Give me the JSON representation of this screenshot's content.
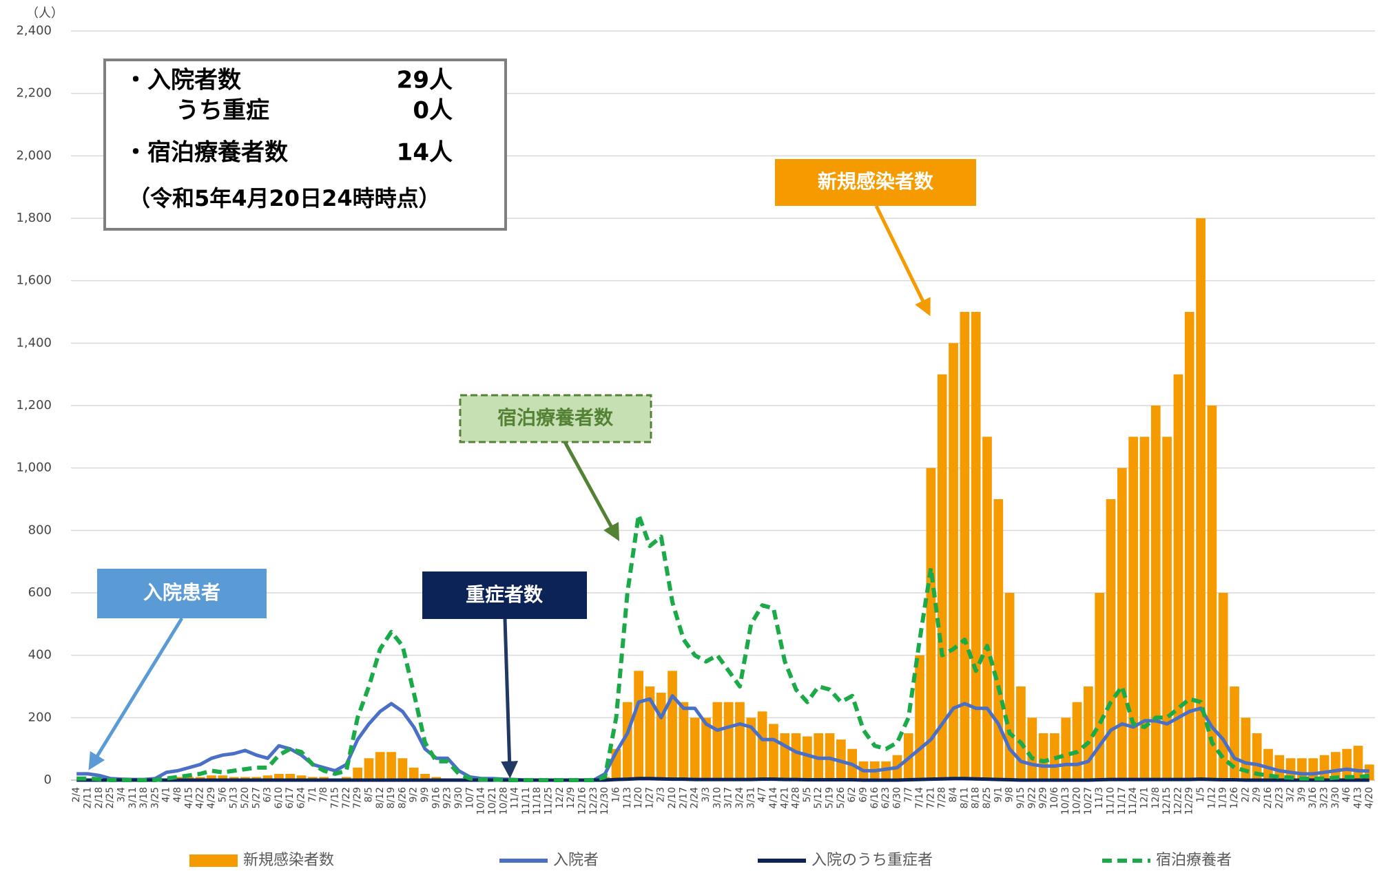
{
  "chart_data": {
    "type": "bar",
    "y_label": "（人）",
    "ylim": [
      0,
      2400
    ],
    "yticks": [
      0,
      200,
      400,
      600,
      800,
      {
        "value": 1000,
        "label": "1,000"
      },
      {
        "value": 1200,
        "label": "1,200"
      },
      {
        "value": 1400,
        "label": "1,400"
      },
      {
        "value": 1600,
        "label": "1,600"
      },
      {
        "value": 1800,
        "label": "1,800"
      },
      {
        "value": 2000,
        "label": "2,000"
      },
      {
        "value": 2200,
        "label": "2,200"
      },
      {
        "value": 2400,
        "label": "2,400"
      }
    ],
    "grid": true,
    "legend": "bottom",
    "categories": [
      "2/4",
      "2/11",
      "2/18",
      "2/25",
      "3/4",
      "3/11",
      "3/18",
      "3/25",
      "4/1",
      "4/8",
      "4/15",
      "4/22",
      "4/29",
      "5/6",
      "5/13",
      "5/20",
      "5/27",
      "6/3",
      "6/10",
      "6/17",
      "6/24",
      "7/1",
      "7/8",
      "7/15",
      "7/22",
      "7/29",
      "8/5",
      "8/12",
      "8/19",
      "8/26",
      "9/2",
      "9/9",
      "9/16",
      "9/23",
      "9/30",
      "10/7",
      "10/14",
      "10/21",
      "10/28",
      "11/4",
      "11/11",
      "11/18",
      "11/25",
      "12/2",
      "12/9",
      "12/16",
      "12/23",
      "12/30",
      "1/6",
      "1/13",
      "1/20",
      "1/27",
      "2/3",
      "2/10",
      "2/17",
      "2/24",
      "3/3",
      "3/10",
      "3/17",
      "3/24",
      "3/31",
      "4/7",
      "4/14",
      "4/21",
      "4/28",
      "5/5",
      "5/12",
      "5/19",
      "5/26",
      "6/2",
      "6/9",
      "6/16",
      "6/23",
      "6/30",
      "7/7",
      "7/14",
      "7/21",
      "7/28",
      "8/4",
      "8/11",
      "8/18",
      "8/25",
      "9/1",
      "9/8",
      "9/15",
      "9/22",
      "9/29",
      "10/6",
      "10/13",
      "10/20",
      "10/27",
      "11/3",
      "11/10",
      "11/17",
      "11/24",
      "12/1",
      "12/8",
      "12/15",
      "12/22",
      "12/29",
      "1/5",
      "1/12",
      "1/19",
      "1/26",
      "2/2",
      "2/9",
      "2/16",
      "2/23",
      "3/2",
      "3/9",
      "3/16",
      "3/23",
      "3/30",
      "4/6",
      "4/13",
      "4/20"
    ],
    "series": [
      {
        "name": "新規感染者数",
        "type": "bar",
        "color": "#f59b00",
        "values": [
          0,
          0,
          0,
          0,
          0,
          0,
          0,
          0,
          5,
          10,
          10,
          10,
          15,
          15,
          10,
          10,
          10,
          15,
          20,
          20,
          15,
          10,
          10,
          5,
          10,
          40,
          70,
          90,
          90,
          70,
          40,
          20,
          10,
          5,
          3,
          2,
          2,
          1,
          0,
          0,
          0,
          0,
          0,
          0,
          0,
          0,
          0,
          10,
          100,
          250,
          350,
          300,
          280,
          350,
          250,
          200,
          200,
          250,
          250,
          250,
          200,
          220,
          180,
          150,
          150,
          140,
          150,
          150,
          130,
          100,
          60,
          60,
          60,
          80,
          150,
          400,
          1000,
          1300,
          1400,
          1500,
          1500,
          1100,
          900,
          600,
          300,
          200,
          150,
          150,
          200,
          250,
          300,
          600,
          900,
          1000,
          1100,
          1100,
          1200,
          1100,
          1300,
          1500,
          1800,
          1200,
          600,
          300,
          200,
          150,
          100,
          80,
          70,
          70,
          70,
          80,
          90,
          100,
          110,
          50
        ]
      },
      {
        "name": "入院者",
        "type": "line",
        "color": "#4a6fc6",
        "dash": false,
        "values": [
          20,
          20,
          15,
          5,
          3,
          2,
          2,
          5,
          25,
          30,
          40,
          50,
          70,
          80,
          85,
          95,
          80,
          70,
          110,
          100,
          80,
          50,
          40,
          30,
          50,
          130,
          180,
          220,
          245,
          220,
          170,
          100,
          70,
          70,
          30,
          10,
          5,
          5,
          3,
          2,
          0,
          0,
          0,
          0,
          0,
          0,
          0,
          20,
          90,
          150,
          250,
          260,
          200,
          270,
          230,
          230,
          180,
          160,
          170,
          180,
          170,
          130,
          130,
          110,
          90,
          80,
          70,
          70,
          60,
          50,
          30,
          30,
          35,
          40,
          70,
          100,
          130,
          180,
          230,
          245,
          230,
          230,
          180,
          100,
          60,
          50,
          45,
          45,
          50,
          50,
          60,
          110,
          160,
          180,
          170,
          190,
          190,
          180,
          200,
          220,
          230,
          170,
          130,
          70,
          55,
          50,
          40,
          30,
          25,
          20,
          20,
          25,
          30,
          35,
          30,
          29
        ]
      },
      {
        "name": "入院のうち重症者",
        "type": "line",
        "color": "#0c2357",
        "dash": false,
        "values": [
          0,
          0,
          0,
          0,
          0,
          0,
          0,
          0,
          0,
          0,
          0,
          0,
          0,
          0,
          0,
          0,
          0,
          0,
          0,
          0,
          0,
          0,
          0,
          0,
          0,
          0,
          0,
          0,
          0,
          0,
          0,
          0,
          0,
          0,
          0,
          0,
          0,
          0,
          0,
          0,
          0,
          0,
          0,
          0,
          0,
          0,
          0,
          0,
          2,
          3,
          5,
          5,
          4,
          3,
          3,
          2,
          2,
          2,
          2,
          2,
          2,
          3,
          3,
          2,
          2,
          1,
          1,
          1,
          1,
          1,
          0,
          0,
          0,
          0,
          1,
          2,
          3,
          4,
          5,
          5,
          4,
          3,
          2,
          1,
          0,
          0,
          0,
          0,
          0,
          0,
          0,
          1,
          2,
          2,
          2,
          2,
          2,
          2,
          2,
          2,
          3,
          2,
          1,
          1,
          0,
          0,
          0,
          0,
          0,
          0,
          0,
          0,
          0,
          0,
          0,
          0
        ]
      },
      {
        "name": "宿泊療養者",
        "type": "line",
        "color": "#1aaa48",
        "dash": true,
        "values": [
          5,
          5,
          3,
          0,
          0,
          0,
          0,
          0,
          5,
          10,
          15,
          20,
          30,
          25,
          30,
          35,
          40,
          40,
          80,
          100,
          90,
          50,
          30,
          20,
          30,
          200,
          300,
          420,
          475,
          430,
          280,
          120,
          60,
          60,
          20,
          5,
          2,
          2,
          0,
          0,
          0,
          0,
          0,
          0,
          0,
          0,
          0,
          10,
          200,
          600,
          850,
          750,
          780,
          570,
          450,
          400,
          380,
          400,
          350,
          300,
          500,
          560,
          550,
          380,
          290,
          250,
          300,
          290,
          250,
          270,
          160,
          110,
          100,
          120,
          200,
          450,
          680,
          400,
          420,
          450,
          350,
          430,
          300,
          150,
          120,
          70,
          60,
          70,
          80,
          90,
          120,
          180,
          250,
          300,
          180,
          170,
          200,
          200,
          230,
          260,
          250,
          120,
          70,
          40,
          30,
          20,
          15,
          10,
          8,
          5,
          5,
          5,
          8,
          10,
          10,
          14
        ]
      }
    ],
    "info_box": {
      "rows": [
        [
          "・入院者数",
          "29人"
        ],
        [
          "うち重症",
          "0人"
        ],
        [
          "・宿泊療養者数",
          "14人"
        ]
      ],
      "note": "（令和5年4月20日24時時点）"
    },
    "callouts": [
      "入院患者",
      "重症者数",
      "宿泊療養者数",
      "新規感染者数"
    ]
  }
}
